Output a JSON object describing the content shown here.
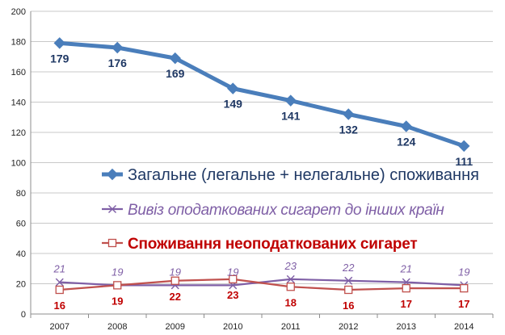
{
  "chart_data": {
    "type": "line",
    "x": [
      "2007",
      "2008",
      "2009",
      "2010",
      "2011",
      "2012",
      "2013",
      "2014"
    ],
    "ylim": [
      0,
      200
    ],
    "yticks": [
      0,
      20,
      40,
      60,
      80,
      100,
      120,
      140,
      160,
      180,
      200
    ],
    "grid": true,
    "legend_placement": "center-right",
    "series": [
      {
        "name": "Загальне (легальне + нелегальне) споживання",
        "values": [
          179,
          176,
          169,
          149,
          141,
          132,
          124,
          111
        ],
        "labels": [
          "179",
          "176",
          "169",
          "149",
          "141",
          "132",
          "124",
          "111"
        ],
        "color": "#4a7ebb",
        "label_color": "#1f3864",
        "marker": "diamond",
        "label_position": "below"
      },
      {
        "name": "Вивіз оподаткованих сигарет до інших країн",
        "values": [
          21,
          19,
          19,
          19,
          23,
          22,
          21,
          19
        ],
        "labels": [
          "21",
          "19",
          "19",
          "19",
          "23",
          "22",
          "21",
          "19"
        ],
        "color": "#7f5fa6",
        "label_color": "#7f5fa6",
        "marker": "x",
        "label_position": "above"
      },
      {
        "name": "Споживання неоподаткованих сигарет",
        "values": [
          16,
          19,
          22,
          23,
          18,
          16,
          17,
          17
        ],
        "labels": [
          "16",
          "19",
          "22",
          "23",
          "18",
          "16",
          "17",
          "17"
        ],
        "color": "#c0504d",
        "label_color": "#c00000",
        "marker": "square",
        "label_position": "below"
      }
    ]
  }
}
